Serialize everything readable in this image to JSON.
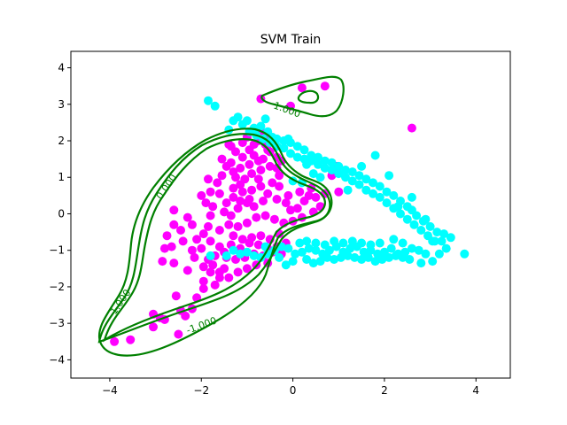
{
  "chart_data": {
    "type": "scatter",
    "title": "SVM Train",
    "xlabel": "",
    "ylabel": "",
    "xlim": [
      -4.85,
      4.75
    ],
    "ylim": [
      -4.5,
      4.45
    ],
    "xticks": [
      -4,
      -2,
      0,
      2,
      4
    ],
    "yticks": [
      -4,
      -3,
      -2,
      -1,
      0,
      1,
      2,
      3,
      4
    ],
    "grid": false,
    "colors": {
      "class_a": "#ff00ff",
      "class_b": "#00ffff",
      "boundary": "#008000"
    },
    "series": [
      {
        "class": "magenta",
        "points": [
          [
            -3.9,
            -3.5
          ],
          [
            -3.55,
            -3.45
          ],
          [
            -3.05,
            -2.75
          ],
          [
            -2.9,
            -2.85
          ],
          [
            -2.8,
            -2.9
          ],
          [
            -3.05,
            -3.1
          ],
          [
            -2.5,
            -3.3
          ],
          [
            -2.45,
            -2.65
          ],
          [
            -2.35,
            -2.8
          ],
          [
            -2.55,
            -2.25
          ],
          [
            -2.2,
            -2.6
          ],
          [
            -2.1,
            -2.3
          ],
          [
            -1.95,
            -2.05
          ],
          [
            -1.95,
            -1.85
          ],
          [
            -1.7,
            -1.95
          ],
          [
            -1.6,
            -1.75
          ],
          [
            -1.6,
            -1.6
          ],
          [
            -1.75,
            -1.4
          ],
          [
            -1.5,
            -1.5
          ],
          [
            -1.45,
            -1.2
          ],
          [
            -2.6,
            -1.35
          ],
          [
            -2.85,
            -1.3
          ],
          [
            -2.8,
            -0.95
          ],
          [
            -2.75,
            -0.6
          ],
          [
            -2.6,
            -0.3
          ],
          [
            -2.45,
            -0.45
          ],
          [
            -2.6,
            0.1
          ],
          [
            -2.3,
            -0.1
          ],
          [
            -2.2,
            -0.3
          ],
          [
            -2.1,
            -0.7
          ],
          [
            -2.4,
            -0.75
          ],
          [
            -2.0,
            -0.95
          ],
          [
            -1.95,
            -0.55
          ],
          [
            -1.85,
            -0.35
          ],
          [
            -1.8,
            -0.05
          ],
          [
            -1.75,
            0.2
          ],
          [
            -1.9,
            0.3
          ],
          [
            -2.0,
            0.5
          ],
          [
            -1.8,
            0.6
          ],
          [
            -1.6,
            0.55
          ],
          [
            -1.65,
            0.85
          ],
          [
            -1.85,
            0.95
          ],
          [
            -1.55,
            1.05
          ],
          [
            -1.45,
            1.3
          ],
          [
            -1.55,
            1.5
          ],
          [
            -1.35,
            1.4
          ],
          [
            -1.25,
            1.7
          ],
          [
            -1.4,
            1.9
          ],
          [
            -1.1,
            1.95
          ],
          [
            -1.0,
            2.1
          ],
          [
            -0.85,
            1.9
          ],
          [
            -0.75,
            2.0
          ],
          [
            -0.6,
            1.9
          ],
          [
            -0.5,
            1.7
          ],
          [
            -0.65,
            1.5
          ],
          [
            -0.85,
            1.6
          ],
          [
            -0.95,
            1.35
          ],
          [
            -1.15,
            1.25
          ],
          [
            -1.25,
            1.0
          ],
          [
            -1.05,
            0.95
          ],
          [
            -0.9,
            1.1
          ],
          [
            -0.7,
            1.2
          ],
          [
            -0.5,
            1.3
          ],
          [
            -0.3,
            1.05
          ],
          [
            -0.45,
            0.85
          ],
          [
            -0.7,
            0.75
          ],
          [
            -0.9,
            0.65
          ],
          [
            -1.1,
            0.6
          ],
          [
            -1.3,
            0.45
          ],
          [
            -1.45,
            0.3
          ],
          [
            -1.5,
            0.05
          ],
          [
            -1.35,
            -0.05
          ],
          [
            -1.2,
            0.15
          ],
          [
            -1.0,
            0.3
          ],
          [
            -0.85,
            0.2
          ],
          [
            -0.65,
            0.35
          ],
          [
            -0.55,
            0.55
          ],
          [
            -0.35,
            0.4
          ],
          [
            -0.15,
            0.3
          ],
          [
            -0.05,
            0.1
          ],
          [
            0.1,
            0.15
          ],
          [
            0.25,
            0.35
          ],
          [
            0.35,
            0.5
          ],
          [
            0.5,
            0.45
          ],
          [
            0.6,
            0.2
          ],
          [
            0.45,
            0.05
          ],
          [
            0.2,
            -0.1
          ],
          [
            0.0,
            -0.2
          ],
          [
            -0.2,
            -0.25
          ],
          [
            -0.4,
            -0.15
          ],
          [
            -0.6,
            -0.05
          ],
          [
            -0.8,
            -0.1
          ],
          [
            -1.0,
            -0.25
          ],
          [
            -1.2,
            -0.35
          ],
          [
            -1.4,
            -0.3
          ],
          [
            -1.6,
            -0.45
          ],
          [
            -1.3,
            -0.6
          ],
          [
            -1.1,
            -0.7
          ],
          [
            -0.9,
            -0.65
          ],
          [
            -0.7,
            -0.6
          ],
          [
            -0.5,
            -0.7
          ],
          [
            -0.3,
            -0.55
          ],
          [
            -0.15,
            -0.8
          ],
          [
            -0.35,
            -0.9
          ],
          [
            -0.55,
            -0.95
          ],
          [
            -0.75,
            -0.85
          ],
          [
            -0.95,
            -0.8
          ],
          [
            -1.15,
            -0.95
          ],
          [
            -1.35,
            -0.85
          ],
          [
            -1.5,
            -1.05
          ],
          [
            -1.6,
            -0.9
          ],
          [
            -1.7,
            -1.15
          ],
          [
            -1.85,
            -1.25
          ],
          [
            -1.25,
            -1.25
          ],
          [
            -1.05,
            -1.2
          ],
          [
            -0.85,
            -1.1
          ],
          [
            -0.65,
            -1.15
          ],
          [
            -0.45,
            -1.05
          ],
          [
            -0.25,
            -1.1
          ],
          [
            -0.55,
            -1.35
          ],
          [
            -0.8,
            -1.4
          ],
          [
            -1.0,
            -1.5
          ],
          [
            -1.2,
            -1.6
          ],
          [
            -1.4,
            -1.75
          ],
          [
            -1.8,
            -1.6
          ],
          [
            -1.95,
            -1.45
          ],
          [
            -2.15,
            -1.2
          ],
          [
            -2.3,
            -1.55
          ],
          [
            -1.3,
            0.7
          ],
          [
            -1.15,
            0.8
          ],
          [
            -0.7,
            2.25
          ],
          [
            -0.55,
            1.75
          ],
          [
            -0.35,
            1.55
          ],
          [
            -0.25,
            1.45
          ],
          [
            -0.35,
            1.25
          ],
          [
            -0.75,
            1.45
          ],
          [
            -0.95,
            1.75
          ],
          [
            -1.1,
            1.55
          ],
          [
            -1.3,
            1.15
          ],
          [
            -0.7,
            3.15
          ],
          [
            -0.05,
            2.95
          ],
          [
            0.2,
            3.45
          ],
          [
            0.7,
            3.5
          ],
          [
            2.6,
            2.35
          ],
          [
            0.95,
            1.3
          ],
          [
            0.85,
            1.05
          ],
          [
            1.0,
            0.6
          ],
          [
            0.7,
            0.55
          ],
          [
            0.4,
            0.7
          ],
          [
            0.15,
            0.6
          ],
          [
            -0.3,
            0.75
          ],
          [
            -0.1,
            0.5
          ],
          [
            -1.35,
            1.85
          ],
          [
            -0.55,
            2.15
          ],
          [
            -0.75,
            0.95
          ],
          [
            -0.95,
            0.4
          ],
          [
            -1.15,
            0.35
          ],
          [
            -2.65,
            -0.9
          ],
          [
            -2.2,
            -1.0
          ],
          [
            -1.8,
            -0.75
          ]
        ]
      },
      {
        "class": "cyan",
        "points": [
          [
            -1.85,
            3.1
          ],
          [
            -1.7,
            2.95
          ],
          [
            -1.3,
            2.55
          ],
          [
            -1.2,
            2.65
          ],
          [
            -1.0,
            2.55
          ],
          [
            -0.85,
            2.35
          ],
          [
            -0.7,
            2.4
          ],
          [
            -0.55,
            2.25
          ],
          [
            -0.45,
            2.1
          ],
          [
            -0.35,
            2.05
          ],
          [
            -0.2,
            2.0
          ],
          [
            -0.05,
            1.95
          ],
          [
            0.1,
            1.85
          ],
          [
            0.25,
            1.75
          ],
          [
            0.4,
            1.6
          ],
          [
            0.55,
            1.55
          ],
          [
            0.7,
            1.45
          ],
          [
            0.85,
            1.4
          ],
          [
            1.0,
            1.3
          ],
          [
            1.15,
            1.2
          ],
          [
            1.3,
            1.15
          ],
          [
            1.45,
            1.05
          ],
          [
            1.6,
            0.95
          ],
          [
            1.75,
            0.85
          ],
          [
            1.9,
            0.75
          ],
          [
            2.05,
            0.6
          ],
          [
            2.2,
            0.5
          ],
          [
            2.35,
            0.35
          ],
          [
            2.5,
            0.2
          ],
          [
            2.6,
            0.1
          ],
          [
            2.7,
            -0.05
          ],
          [
            2.85,
            -0.2
          ],
          [
            3.0,
            -0.35
          ],
          [
            3.15,
            -0.5
          ],
          [
            3.3,
            -0.55
          ],
          [
            3.45,
            -0.65
          ],
          [
            3.1,
            -0.75
          ],
          [
            2.95,
            -0.6
          ],
          [
            2.8,
            -0.45
          ],
          [
            2.65,
            -0.3
          ],
          [
            2.5,
            -0.15
          ],
          [
            2.35,
            0.0
          ],
          [
            2.2,
            0.15
          ],
          [
            2.05,
            0.3
          ],
          [
            1.9,
            0.45
          ],
          [
            1.75,
            0.55
          ],
          [
            1.6,
            0.65
          ],
          [
            1.45,
            0.8
          ],
          [
            1.3,
            0.9
          ],
          [
            1.15,
            1.0
          ],
          [
            1.0,
            1.1
          ],
          [
            0.85,
            1.2
          ],
          [
            0.7,
            1.25
          ],
          [
            0.55,
            1.35
          ],
          [
            0.4,
            1.45
          ],
          [
            0.25,
            1.5
          ],
          [
            0.1,
            1.55
          ],
          [
            -0.05,
            1.65
          ],
          [
            -0.2,
            1.8
          ],
          [
            -0.35,
            1.85
          ],
          [
            -0.5,
            1.95
          ],
          [
            -0.65,
            2.05
          ],
          [
            -0.8,
            2.15
          ],
          [
            -0.95,
            2.25
          ],
          [
            1.8,
            1.6
          ],
          [
            2.3,
            0.2
          ],
          [
            3.75,
            -1.1
          ],
          [
            3.2,
            -1.1
          ],
          [
            3.05,
            -1.3
          ],
          [
            2.9,
            -1.1
          ],
          [
            2.75,
            -1.0
          ],
          [
            2.6,
            -0.95
          ],
          [
            2.45,
            -1.05
          ],
          [
            2.3,
            -1.1
          ],
          [
            2.15,
            -0.95
          ],
          [
            2.0,
            -1.05
          ],
          [
            1.85,
            -1.1
          ],
          [
            1.7,
            -1.0
          ],
          [
            1.55,
            -1.05
          ],
          [
            1.4,
            -0.9
          ],
          [
            1.25,
            -0.95
          ],
          [
            1.1,
            -1.05
          ],
          [
            0.95,
            -0.9
          ],
          [
            0.8,
            -1.0
          ],
          [
            0.65,
            -1.1
          ],
          [
            0.5,
            -1.0
          ],
          [
            0.35,
            -0.95
          ],
          [
            0.2,
            -1.05
          ],
          [
            0.05,
            -1.1
          ],
          [
            -0.1,
            -0.95
          ],
          [
            -0.25,
            -0.9
          ],
          [
            -0.4,
            -1.0
          ],
          [
            -0.55,
            -1.1
          ],
          [
            -0.7,
            -1.2
          ],
          [
            -0.85,
            -1.15
          ],
          [
            -1.0,
            -1.05
          ],
          [
            -1.15,
            -1.1
          ],
          [
            -1.3,
            -1.0
          ],
          [
            -1.45,
            -1.15
          ],
          [
            -1.8,
            -1.15
          ],
          [
            0.3,
            -1.25
          ],
          [
            0.45,
            -1.35
          ],
          [
            0.6,
            -1.3
          ],
          [
            0.75,
            -1.2
          ],
          [
            0.9,
            -1.25
          ],
          [
            1.05,
            -1.2
          ],
          [
            1.2,
            -1.15
          ],
          [
            1.35,
            -1.2
          ],
          [
            1.5,
            -1.25
          ],
          [
            1.65,
            -1.2
          ],
          [
            1.8,
            -1.3
          ],
          [
            1.95,
            -1.25
          ],
          [
            2.1,
            -1.2
          ],
          [
            2.25,
            -1.15
          ],
          [
            2.4,
            -1.2
          ],
          [
            2.55,
            -1.25
          ],
          [
            0.15,
            -0.8
          ],
          [
            0.3,
            -0.75
          ],
          [
            0.5,
            -0.8
          ],
          [
            0.7,
            -0.85
          ],
          [
            0.9,
            -0.75
          ],
          [
            1.1,
            -0.8
          ],
          [
            1.3,
            -0.75
          ],
          [
            1.5,
            -0.8
          ],
          [
            1.7,
            -0.85
          ],
          [
            1.9,
            -0.8
          ],
          [
            -0.6,
            -0.9
          ],
          [
            -0.3,
            -1.2
          ],
          [
            0.0,
            -1.3
          ],
          [
            -0.15,
            -1.4
          ],
          [
            2.8,
            -1.35
          ],
          [
            3.05,
            -0.75
          ],
          [
            3.35,
            -0.95
          ],
          [
            2.2,
            -0.7
          ],
          [
            2.4,
            -0.8
          ],
          [
            0.45,
            1.1
          ],
          [
            0.6,
            1.0
          ],
          [
            0.3,
            1.35
          ],
          [
            -0.1,
            2.05
          ],
          [
            -0.6,
            2.6
          ],
          [
            -1.1,
            2.45
          ],
          [
            -1.4,
            2.3
          ],
          [
            2.1,
            1.05
          ],
          [
            1.5,
            1.3
          ],
          [
            1.2,
            0.65
          ],
          [
            2.6,
            0.45
          ],
          [
            2.9,
            -0.15
          ],
          [
            3.25,
            -0.75
          ],
          [
            0.0,
            0.9
          ],
          [
            0.2,
            0.85
          ]
        ]
      }
    ],
    "contour_labels": [
      {
        "text": "1.000"
      },
      {
        "text": "0.000"
      },
      {
        "text": "1.000"
      },
      {
        "text": "-1.000"
      }
    ]
  }
}
